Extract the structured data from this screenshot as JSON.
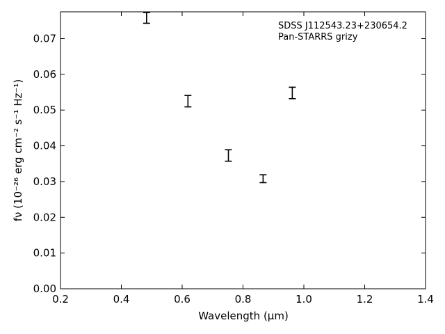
{
  "chart_data": {
    "type": "scatter",
    "title": "",
    "xlabel": "Wavelength (μm)",
    "ylabel": "fν (10⁻²⁶ erg cm⁻² s⁻¹ Hz⁻¹)",
    "xlim": [
      0.2,
      1.4
    ],
    "ylim": [
      0.0,
      0.0775
    ],
    "xticks": [
      0.2,
      0.4,
      0.6,
      0.8,
      1.0,
      1.2,
      1.4
    ],
    "xtick_labels": [
      "0.2",
      "0.4",
      "0.6",
      "0.8",
      "1.0",
      "1.2",
      "1.4"
    ],
    "yticks": [
      0.0,
      0.01,
      0.02,
      0.03,
      0.04,
      0.05,
      0.06,
      0.07
    ],
    "ytick_labels": [
      "0.00",
      "0.01",
      "0.02",
      "0.03",
      "0.04",
      "0.05",
      "0.06",
      "0.07"
    ],
    "grid": false,
    "annotations": [
      "SDSS J112543.23+230654.2",
      "Pan-STARRS grizy"
    ],
    "series": [
      {
        "marker": "errorbar",
        "color": "#000000",
        "points": [
          {
            "x": 0.483,
            "y": 0.0758,
            "yerr": 0.0015
          },
          {
            "x": 0.619,
            "y": 0.0525,
            "yerr": 0.0016
          },
          {
            "x": 0.752,
            "y": 0.0373,
            "yerr": 0.0016
          },
          {
            "x": 0.866,
            "y": 0.0308,
            "yerr": 0.0011
          },
          {
            "x": 0.962,
            "y": 0.0548,
            "yerr": 0.0016
          }
        ]
      }
    ]
  }
}
